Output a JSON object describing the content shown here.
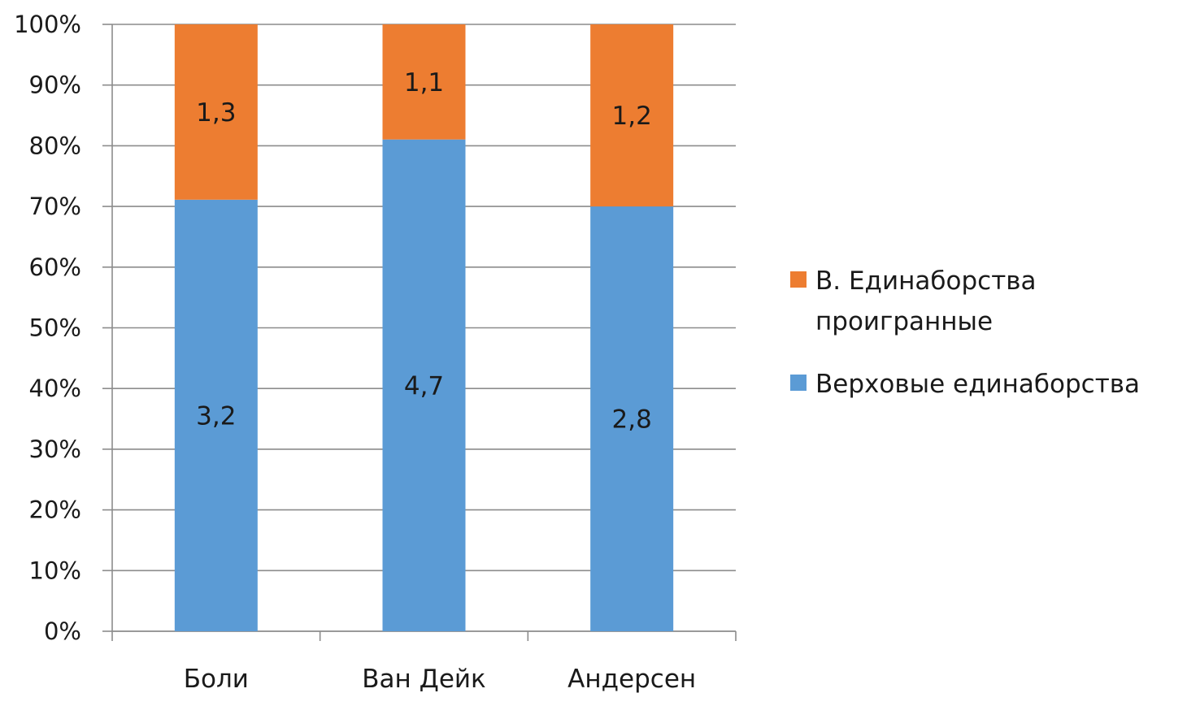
{
  "chart_data": {
    "type": "bar",
    "stacked": true,
    "normalized": true,
    "title": "",
    "xlabel": "",
    "ylabel": "",
    "ylim": [
      0,
      100
    ],
    "y_ticks": [
      "0%",
      "10%",
      "20%",
      "30%",
      "40%",
      "50%",
      "60%",
      "70%",
      "80%",
      "90%",
      "100%"
    ],
    "categories": [
      "Боли",
      "Ван Дейк",
      "Андерсен"
    ],
    "series": [
      {
        "name": "Верховые единаборства",
        "values": [
          3.2,
          4.7,
          2.8
        ],
        "labels": [
          "3,2",
          "4,7",
          "2,8"
        ],
        "color": "#5b9bd5"
      },
      {
        "name": "В. Единаборства проигранные",
        "values": [
          1.3,
          1.1,
          1.2
        ],
        "labels": [
          "1,3",
          "1,1",
          "1,2"
        ],
        "color": "#ed7d31"
      }
    ],
    "grid": true,
    "legend": {
      "placement": "right",
      "entries": [
        {
          "lines": [
            "В. Единаборства",
            "проигранные"
          ],
          "series": 1
        },
        {
          "lines": [
            "Верховые единаборства"
          ],
          "series": 0
        }
      ]
    }
  }
}
